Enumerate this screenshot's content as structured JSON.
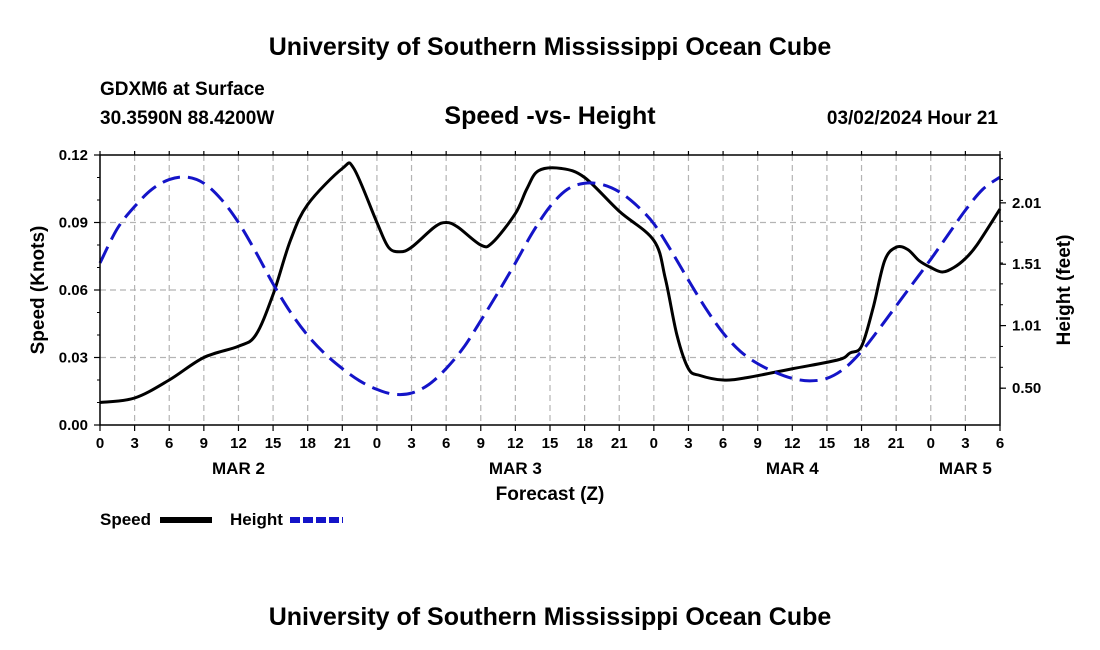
{
  "chart_data": {
    "type": "line",
    "title": "University of Southern Mississippi Ocean Cube",
    "footer_title": "University of Southern Mississippi Ocean Cube",
    "station": "GDXM6 at Surface",
    "location": "30.3590N  88.4200W",
    "plot_title": "Speed -vs- Height",
    "date": "03/02/2024 Hour 21",
    "xlabel": "Forecast (Z)",
    "ylabel_left": "Speed (Knots)",
    "ylabel_right": "Height (feet)",
    "x_range_hours": [
      0,
      78
    ],
    "x_tick_labels": [
      "0",
      "3",
      "6",
      "9",
      "12",
      "15",
      "18",
      "21",
      "0",
      "3",
      "6",
      "9",
      "12",
      "15",
      "18",
      "21",
      "0",
      "3",
      "6",
      "9",
      "12",
      "15",
      "18",
      "21",
      "0",
      "3",
      "6"
    ],
    "date_labels": [
      {
        "text": "MAR 2",
        "hour": 12
      },
      {
        "text": "MAR 3",
        "hour": 36
      },
      {
        "text": "MAR 4",
        "hour": 60
      },
      {
        "text": "MAR 5",
        "hour": 75
      }
    ],
    "left_axis": {
      "min": 0,
      "max": 0.12,
      "ticks": [
        0.0,
        0.03,
        0.06,
        0.09,
        0.12
      ],
      "tick_labels": [
        "0.00",
        "0.03",
        "0.06",
        "0.09",
        "0.12"
      ]
    },
    "right_axis": {
      "min": 0.2,
      "max": 2.4,
      "ticks": [
        0.5,
        1.01,
        1.51,
        2.01
      ],
      "tick_labels": [
        "0.50",
        "1.01",
        "1.51",
        "2.01"
      ]
    },
    "series": [
      {
        "name": "Speed",
        "axis": "left",
        "color": "#000000",
        "style": "solid",
        "points": [
          [
            0,
            0.01
          ],
          [
            3,
            0.012
          ],
          [
            6,
            0.02
          ],
          [
            9,
            0.03
          ],
          [
            12,
            0.035
          ],
          [
            13.5,
            0.04
          ],
          [
            15,
            0.058
          ],
          [
            16.5,
            0.082
          ],
          [
            18,
            0.098
          ],
          [
            21,
            0.114
          ],
          [
            22,
            0.114
          ],
          [
            24,
            0.09
          ],
          [
            25,
            0.079
          ],
          [
            26,
            0.077
          ],
          [
            27,
            0.079
          ],
          [
            29,
            0.088
          ],
          [
            30,
            0.09
          ],
          [
            31,
            0.088
          ],
          [
            33,
            0.08
          ],
          [
            34,
            0.081
          ],
          [
            36,
            0.094
          ],
          [
            37,
            0.105
          ],
          [
            38,
            0.113
          ],
          [
            40,
            0.114
          ],
          [
            42,
            0.11
          ],
          [
            45,
            0.095
          ],
          [
            48,
            0.082
          ],
          [
            49,
            0.065
          ],
          [
            50,
            0.04
          ],
          [
            51,
            0.025
          ],
          [
            52,
            0.022
          ],
          [
            54,
            0.02
          ],
          [
            56,
            0.021
          ],
          [
            60,
            0.025
          ],
          [
            64,
            0.029
          ],
          [
            65,
            0.032
          ],
          [
            66,
            0.035
          ],
          [
            67,
            0.052
          ],
          [
            68,
            0.073
          ],
          [
            69,
            0.079
          ],
          [
            70,
            0.078
          ],
          [
            71,
            0.073
          ],
          [
            72,
            0.07
          ],
          [
            73,
            0.068
          ],
          [
            74,
            0.07
          ],
          [
            75,
            0.074
          ],
          [
            76,
            0.08
          ],
          [
            78,
            0.096
          ]
        ]
      },
      {
        "name": "Height",
        "axis": "right",
        "color": "#1414c8",
        "style": "dashed",
        "points": [
          [
            0,
            1.52
          ],
          [
            1.5,
            1.8
          ],
          [
            3,
            1.98
          ],
          [
            4.5,
            2.12
          ],
          [
            6,
            2.2
          ],
          [
            7.5,
            2.22
          ],
          [
            9,
            2.17
          ],
          [
            10.5,
            2.04
          ],
          [
            12,
            1.85
          ],
          [
            13.5,
            1.61
          ],
          [
            15,
            1.35
          ],
          [
            16.5,
            1.12
          ],
          [
            18,
            0.93
          ],
          [
            19.5,
            0.78
          ],
          [
            21,
            0.66
          ],
          [
            22.5,
            0.56
          ],
          [
            24,
            0.49
          ],
          [
            25.5,
            0.45
          ],
          [
            27,
            0.46
          ],
          [
            28.5,
            0.53
          ],
          [
            30,
            0.66
          ],
          [
            31.5,
            0.83
          ],
          [
            33,
            1.05
          ],
          [
            34.5,
            1.28
          ],
          [
            36,
            1.52
          ],
          [
            37.5,
            1.77
          ],
          [
            39,
            1.98
          ],
          [
            40.5,
            2.12
          ],
          [
            42,
            2.17
          ],
          [
            43.5,
            2.16
          ],
          [
            45,
            2.1
          ],
          [
            46.5,
            1.99
          ],
          [
            48,
            1.84
          ],
          [
            49.5,
            1.62
          ],
          [
            51,
            1.38
          ],
          [
            52.5,
            1.15
          ],
          [
            54,
            0.95
          ],
          [
            55.5,
            0.8
          ],
          [
            57,
            0.7
          ],
          [
            58.5,
            0.63
          ],
          [
            60,
            0.58
          ],
          [
            61.5,
            0.56
          ],
          [
            63,
            0.58
          ],
          [
            64.5,
            0.66
          ],
          [
            66,
            0.8
          ],
          [
            67.5,
            0.98
          ],
          [
            69,
            1.17
          ],
          [
            70.5,
            1.36
          ],
          [
            72,
            1.55
          ],
          [
            73.5,
            1.75
          ],
          [
            75,
            1.95
          ],
          [
            76.5,
            2.12
          ],
          [
            78,
            2.22
          ]
        ]
      }
    ],
    "legend": [
      {
        "label": "Speed",
        "color": "#000000",
        "style": "solid"
      },
      {
        "label": "Height",
        "color": "#1414c8",
        "style": "dashed"
      }
    ],
    "grid": true
  }
}
